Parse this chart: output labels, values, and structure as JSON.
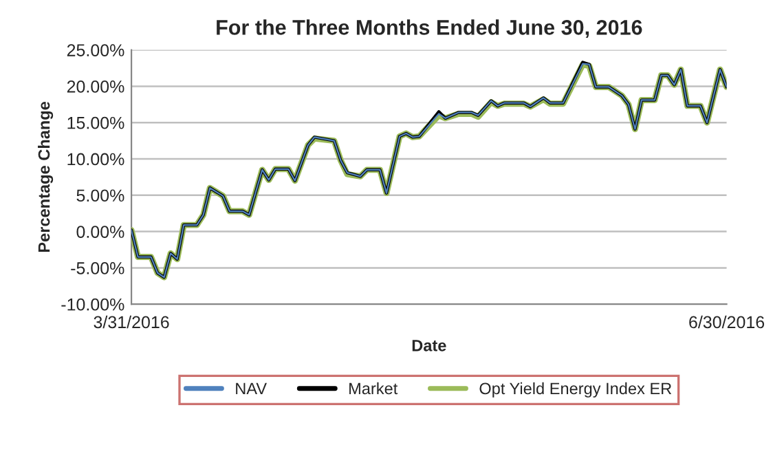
{
  "chart_data": {
    "type": "line",
    "title": "For the Three Months Ended June 30, 2016",
    "xlabel": "Date",
    "ylabel": "Percentage Change",
    "x": [
      "2016-03-31",
      "2016-04-01",
      "2016-04-03",
      "2016-04-04",
      "2016-04-05",
      "2016-04-06",
      "2016-04-07",
      "2016-04-08",
      "2016-04-10",
      "2016-04-11",
      "2016-04-12",
      "2016-04-14",
      "2016-04-15",
      "2016-04-17",
      "2016-04-18",
      "2016-04-20",
      "2016-04-21",
      "2016-04-22",
      "2016-04-24",
      "2016-04-25",
      "2016-04-27",
      "2016-04-28",
      "2016-05-01",
      "2016-05-02",
      "2016-05-03",
      "2016-05-05",
      "2016-05-06",
      "2016-05-08",
      "2016-05-09",
      "2016-05-11",
      "2016-05-12",
      "2016-05-13",
      "2016-05-14",
      "2016-05-17",
      "2016-05-18",
      "2016-05-20",
      "2016-05-22",
      "2016-05-23",
      "2016-05-25",
      "2016-05-26",
      "2016-05-27",
      "2016-05-30",
      "2016-05-31",
      "2016-06-02",
      "2016-06-03",
      "2016-06-05",
      "2016-06-08",
      "2016-06-09",
      "2016-06-10",
      "2016-06-12",
      "2016-06-14",
      "2016-06-15",
      "2016-06-16",
      "2016-06-17",
      "2016-06-19",
      "2016-06-20",
      "2016-06-21",
      "2016-06-22",
      "2016-06-23",
      "2016-06-24",
      "2016-06-26",
      "2016-06-27",
      "2016-06-29",
      "2016-06-30"
    ],
    "series": [
      {
        "name": "NAV",
        "color": "#4f81bd",
        "values": [
          0.2,
          -3.5,
          -3.5,
          -5.7,
          -6.3,
          -3.0,
          -3.8,
          0.9,
          0.9,
          2.3,
          6.0,
          4.9,
          2.8,
          2.8,
          2.3,
          8.5,
          7.1,
          8.6,
          8.6,
          7.0,
          11.9,
          13.0,
          12.5,
          9.8,
          8.1,
          7.6,
          8.5,
          8.5,
          5.3,
          13.1,
          13.5,
          13.0,
          13.1,
          16.2,
          15.6,
          16.4,
          16.4,
          16.0,
          18.0,
          17.3,
          17.7,
          17.7,
          17.2,
          18.4,
          17.7,
          17.7,
          23.1,
          23.0,
          19.9,
          19.9,
          18.7,
          17.5,
          14.1,
          18.1,
          18.1,
          21.5,
          21.5,
          20.2,
          22.3,
          17.3,
          17.3,
          15.0,
          22.3,
          19.9
        ]
      },
      {
        "name": "Market",
        "color": "#000000",
        "values": [
          0.2,
          -3.5,
          -3.5,
          -5.7,
          -6.3,
          -3.0,
          -3.8,
          0.9,
          0.9,
          2.3,
          6.0,
          4.9,
          2.8,
          2.8,
          2.3,
          8.5,
          7.1,
          8.6,
          8.6,
          7.0,
          11.9,
          13.0,
          12.5,
          9.8,
          8.1,
          7.6,
          8.5,
          8.5,
          5.3,
          13.1,
          13.5,
          13.0,
          13.1,
          16.5,
          15.6,
          16.4,
          16.4,
          16.0,
          18.0,
          17.3,
          17.7,
          17.7,
          17.2,
          18.4,
          17.7,
          17.7,
          23.3,
          23.0,
          19.9,
          19.9,
          18.7,
          17.5,
          14.1,
          18.1,
          18.1,
          21.5,
          21.5,
          20.2,
          22.3,
          17.3,
          17.3,
          15.0,
          22.3,
          19.9
        ]
      },
      {
        "name": "Opt Yield Energy Index ER",
        "color": "#9bbb59",
        "values": [
          0.2,
          -3.5,
          -3.5,
          -5.7,
          -6.3,
          -3.0,
          -3.8,
          0.9,
          0.9,
          2.3,
          6.0,
          4.9,
          2.8,
          2.8,
          2.3,
          8.5,
          7.1,
          8.6,
          8.6,
          7.0,
          11.9,
          12.8,
          12.5,
          9.8,
          7.9,
          7.6,
          8.5,
          8.5,
          5.3,
          13.1,
          13.5,
          13.0,
          13.1,
          16.0,
          15.6,
          16.2,
          16.2,
          15.8,
          17.8,
          17.3,
          17.6,
          17.6,
          17.2,
          18.2,
          17.6,
          17.6,
          23.0,
          22.8,
          19.9,
          19.9,
          18.7,
          17.5,
          14.1,
          18.1,
          18.1,
          21.5,
          21.5,
          20.2,
          22.3,
          17.3,
          17.3,
          15.0,
          22.3,
          19.9
        ]
      }
    ],
    "xlim": [
      "2016-03-31",
      "2016-06-30"
    ],
    "xticks": [
      {
        "value": "2016-03-31",
        "label": "3/31/2016"
      },
      {
        "value": "2016-06-30",
        "label": "6/30/2016"
      }
    ],
    "ylim": [
      -10,
      25
    ],
    "yticks": [
      {
        "value": -10,
        "label": "-10.00%"
      },
      {
        "value": -5,
        "label": "-5.00%"
      },
      {
        "value": 0,
        "label": "0.00%"
      },
      {
        "value": 5,
        "label": "5.00%"
      },
      {
        "value": 10,
        "label": "10.00%"
      },
      {
        "value": 15,
        "label": "15.00%"
      },
      {
        "value": 20,
        "label": "20.00%"
      },
      {
        "value": 25,
        "label": "25.00%"
      }
    ],
    "grid": "y",
    "legend": "bottom",
    "marker": "none",
    "line_style": "solid"
  }
}
